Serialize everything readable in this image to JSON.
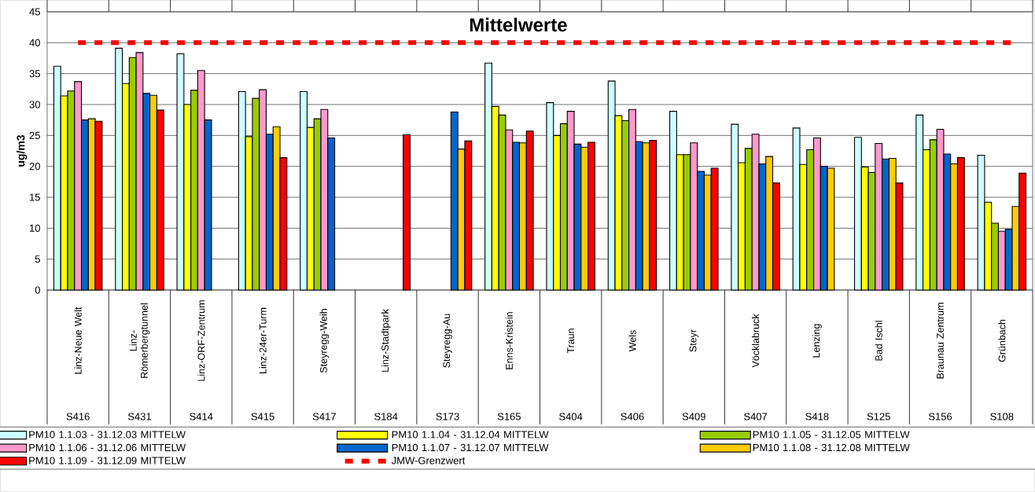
{
  "chart_data": {
    "type": "bar",
    "title": "Mittelwerte",
    "ylabel": "ug/m3",
    "categories": [
      "Linz-Neue Welt",
      "Linz-Römerbergtunnel",
      "Linz-ORF-Zentrum",
      "Linz-24er-Turm",
      "Steyregg-Weih",
      "Linz-Stadtpark",
      "Steyregg-Au",
      "Enns-Kristein",
      "Traun",
      "Wels",
      "Steyr",
      "Vöcklabruck",
      "Lenzing",
      "Bad Ischl",
      "Braunau Zentrum",
      "Grünbach"
    ],
    "annotations": [
      "S416",
      "S431",
      "S414",
      "S415",
      "S417",
      "S184",
      "S173",
      "S165",
      "S404",
      "S406",
      "S409",
      "S407",
      "S418",
      "S125",
      "S156",
      "S108"
    ],
    "series": [
      {
        "name": "PM10 1.1.03 - 31.12.03 MITTELW",
        "color": "#ccffff",
        "values": [
          36.2,
          39.1,
          38.2,
          32.1,
          32.1,
          null,
          null,
          36.7,
          30.3,
          33.8,
          28.9,
          26.8,
          26.2,
          24.7,
          28.3,
          21.8
        ]
      },
      {
        "name": "PM10 1.1.04 - 31.12.04 MITTELW",
        "color": "#ffff00",
        "values": [
          31.4,
          33.4,
          30.0,
          24.8,
          26.3,
          null,
          null,
          29.7,
          25.0,
          28.2,
          21.9,
          20.6,
          20.3,
          19.9,
          22.7,
          14.2
        ]
      },
      {
        "name": "PM10 1.1.05 - 31.12.05 MITTELW",
        "color": "#99cc00",
        "values": [
          32.2,
          37.6,
          32.3,
          31.0,
          27.7,
          null,
          null,
          28.3,
          26.9,
          27.4,
          21.9,
          22.9,
          22.7,
          19.0,
          24.3,
          10.8
        ]
      },
      {
        "name": "PM10 1.1.06 - 31.12.06 MITTELW",
        "color": "#ff99cc",
        "values": [
          33.7,
          38.4,
          35.5,
          32.4,
          29.2,
          null,
          null,
          25.9,
          28.9,
          29.2,
          23.8,
          25.2,
          24.6,
          23.7,
          26.0,
          9.5
        ]
      },
      {
        "name": "PM10 1.1.07 - 31.12.07 MITTELW",
        "color": "#0066cc",
        "values": [
          27.5,
          31.8,
          27.5,
          25.2,
          24.6,
          null,
          28.8,
          23.9,
          23.6,
          24.0,
          19.2,
          20.4,
          20.0,
          21.2,
          22.0,
          9.8
        ]
      },
      {
        "name": "PM10 1.1.08 - 31.12.08 MITTELW",
        "color": "#ffcc00",
        "values": [
          27.7,
          31.5,
          null,
          26.4,
          null,
          null,
          22.8,
          23.8,
          23.1,
          23.8,
          18.6,
          21.6,
          19.7,
          21.3,
          20.4,
          13.5
        ]
      },
      {
        "name": "PM10 1.1.09 - 31.12.09 MITTELW",
        "color": "#ff0000",
        "values": [
          27.3,
          29.1,
          null,
          21.4,
          null,
          25.1,
          24.1,
          25.7,
          23.9,
          24.2,
          19.7,
          17.3,
          null,
          17.3,
          21.4,
          18.9
        ]
      }
    ],
    "ref_lines": [
      {
        "axis": "y",
        "value": 40,
        "label": "JMW-Grenzwert",
        "color": "#ff0000",
        "line_style": "dashed"
      }
    ],
    "ylim": [
      0,
      45
    ],
    "yticks": [
      0,
      5,
      10,
      15,
      20,
      25,
      30,
      35,
      40,
      45
    ],
    "grid": "y",
    "legend": "bottom"
  }
}
